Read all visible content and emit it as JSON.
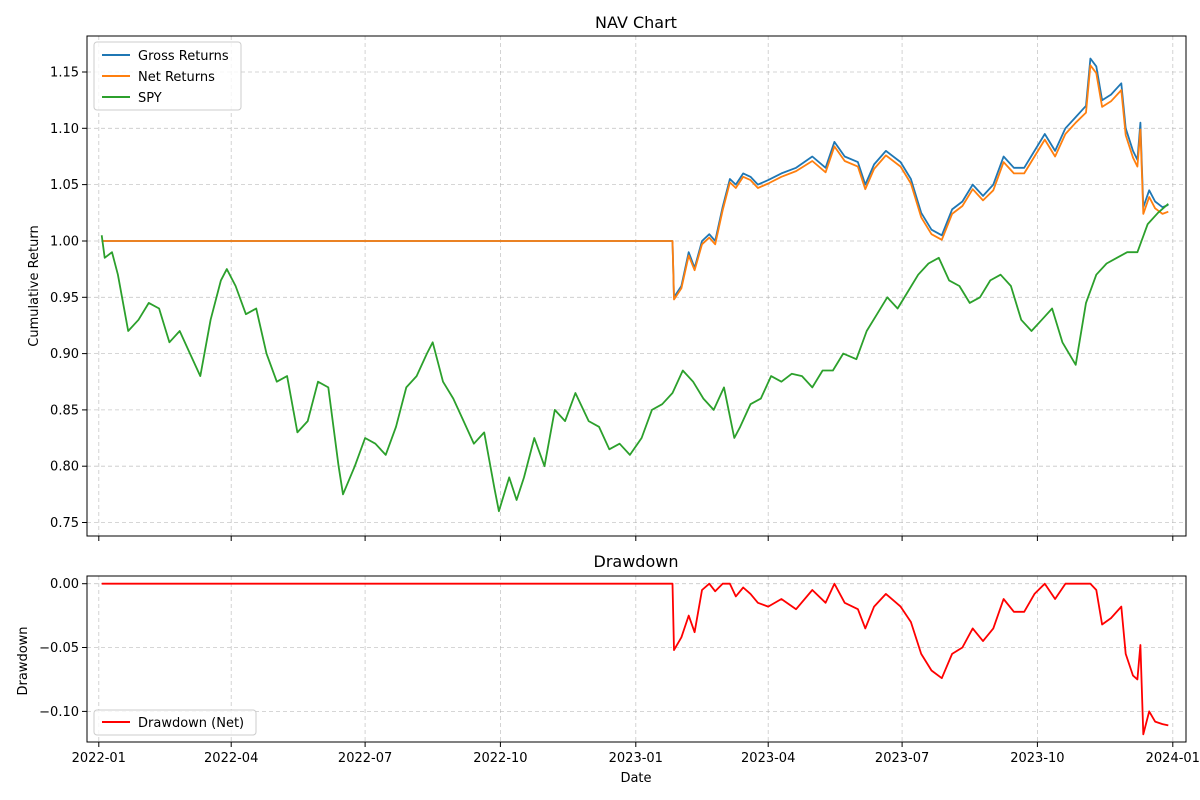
{
  "chart_data": [
    {
      "type": "line",
      "title": "NAV Chart",
      "xlabel": "",
      "ylabel": "Cumulative Return",
      "x_range": [
        "2021-12-24",
        "2024-01-10"
      ],
      "ylim": [
        0.738,
        1.182
      ],
      "xticks": [
        "2022-01",
        "2022-04",
        "2022-07",
        "2022-10",
        "2023-01",
        "2023-04",
        "2023-07",
        "2023-10",
        "2024-01"
      ],
      "xticks_visible": false,
      "yticks": [
        0.75,
        0.8,
        0.85,
        0.9,
        0.95,
        1.0,
        1.05,
        1.1,
        1.15
      ],
      "ytick_labels": [
        "0.75",
        "0.80",
        "0.85",
        "0.90",
        "0.95",
        "1.00",
        "1.05",
        "1.10",
        "1.15"
      ],
      "grid": true,
      "legend": "upper-left",
      "series": [
        {
          "name": "Gross Returns",
          "color": "#1f77b4",
          "x": [
            "2022-01-03",
            "2023-01-26",
            "2023-01-27",
            "2023-02-01",
            "2023-02-06",
            "2023-02-10",
            "2023-02-15",
            "2023-02-20",
            "2023-02-24",
            "2023-03-01",
            "2023-03-06",
            "2023-03-10",
            "2023-03-15",
            "2023-03-20",
            "2023-03-25",
            "2023-04-01",
            "2023-04-10",
            "2023-04-20",
            "2023-05-01",
            "2023-05-10",
            "2023-05-16",
            "2023-05-23",
            "2023-06-01",
            "2023-06-06",
            "2023-06-12",
            "2023-06-20",
            "2023-06-30",
            "2023-07-07",
            "2023-07-14",
            "2023-07-21",
            "2023-07-28",
            "2023-08-04",
            "2023-08-11",
            "2023-08-18",
            "2023-08-25",
            "2023-09-01",
            "2023-09-08",
            "2023-09-15",
            "2023-09-22",
            "2023-09-29",
            "2023-10-06",
            "2023-10-13",
            "2023-10-20",
            "2023-10-27",
            "2023-11-03",
            "2023-11-06",
            "2023-11-10",
            "2023-11-14",
            "2023-11-20",
            "2023-11-27",
            "2023-11-30",
            "2023-12-05",
            "2023-12-08",
            "2023-12-10",
            "2023-12-12",
            "2023-12-16",
            "2023-12-20",
            "2023-12-25",
            "2023-12-29"
          ],
          "values": [
            1.0,
            1.0,
            0.95,
            0.96,
            0.99,
            0.976,
            1.0,
            1.006,
            1.0,
            1.03,
            1.055,
            1.05,
            1.06,
            1.057,
            1.05,
            1.054,
            1.06,
            1.065,
            1.075,
            1.065,
            1.088,
            1.075,
            1.07,
            1.05,
            1.068,
            1.08,
            1.07,
            1.055,
            1.025,
            1.01,
            1.005,
            1.028,
            1.035,
            1.05,
            1.04,
            1.05,
            1.075,
            1.065,
            1.065,
            1.08,
            1.095,
            1.08,
            1.1,
            1.11,
            1.12,
            1.162,
            1.155,
            1.125,
            1.13,
            1.14,
            1.1,
            1.08,
            1.072,
            1.105,
            1.03,
            1.045,
            1.035,
            1.03,
            1.032
          ]
        },
        {
          "name": "Net Returns",
          "color": "#ff7f0e",
          "x": [
            "2022-01-03",
            "2023-01-26",
            "2023-01-27",
            "2023-02-01",
            "2023-02-06",
            "2023-02-10",
            "2023-02-15",
            "2023-02-20",
            "2023-02-24",
            "2023-03-01",
            "2023-03-06",
            "2023-03-10",
            "2023-03-15",
            "2023-03-20",
            "2023-03-25",
            "2023-04-01",
            "2023-04-10",
            "2023-04-20",
            "2023-05-01",
            "2023-05-10",
            "2023-05-16",
            "2023-05-23",
            "2023-06-01",
            "2023-06-06",
            "2023-06-12",
            "2023-06-20",
            "2023-06-30",
            "2023-07-07",
            "2023-07-14",
            "2023-07-21",
            "2023-07-28",
            "2023-08-04",
            "2023-08-11",
            "2023-08-18",
            "2023-08-25",
            "2023-09-01",
            "2023-09-08",
            "2023-09-15",
            "2023-09-22",
            "2023-09-29",
            "2023-10-06",
            "2023-10-13",
            "2023-10-20",
            "2023-10-27",
            "2023-11-03",
            "2023-11-06",
            "2023-11-10",
            "2023-11-14",
            "2023-11-20",
            "2023-11-27",
            "2023-11-30",
            "2023-12-05",
            "2023-12-08",
            "2023-12-10",
            "2023-12-12",
            "2023-12-16",
            "2023-12-20",
            "2023-12-25",
            "2023-12-29"
          ],
          "values": [
            1.0,
            1.0,
            0.948,
            0.958,
            0.987,
            0.974,
            0.997,
            1.003,
            0.997,
            1.027,
            1.052,
            1.047,
            1.057,
            1.054,
            1.047,
            1.051,
            1.057,
            1.062,
            1.071,
            1.061,
            1.084,
            1.071,
            1.066,
            1.046,
            1.064,
            1.076,
            1.066,
            1.051,
            1.021,
            1.006,
            1.001,
            1.024,
            1.031,
            1.046,
            1.036,
            1.045,
            1.07,
            1.06,
            1.06,
            1.075,
            1.09,
            1.075,
            1.095,
            1.105,
            1.114,
            1.156,
            1.149,
            1.119,
            1.124,
            1.134,
            1.094,
            1.074,
            1.066,
            1.099,
            1.024,
            1.039,
            1.029,
            1.024,
            1.026
          ]
        },
        {
          "name": "SPY",
          "color": "#2ca02c",
          "x": [
            "2022-01-03",
            "2022-01-05",
            "2022-01-10",
            "2022-01-14",
            "2022-01-21",
            "2022-01-28",
            "2022-02-04",
            "2022-02-11",
            "2022-02-18",
            "2022-02-25",
            "2022-03-04",
            "2022-03-11",
            "2022-03-18",
            "2022-03-25",
            "2022-03-29",
            "2022-04-04",
            "2022-04-11",
            "2022-04-18",
            "2022-04-25",
            "2022-05-02",
            "2022-05-09",
            "2022-05-16",
            "2022-05-23",
            "2022-05-30",
            "2022-06-06",
            "2022-06-13",
            "2022-06-16",
            "2022-06-24",
            "2022-07-01",
            "2022-07-08",
            "2022-07-15",
            "2022-07-22",
            "2022-07-29",
            "2022-08-05",
            "2022-08-12",
            "2022-08-16",
            "2022-08-23",
            "2022-08-30",
            "2022-09-06",
            "2022-09-13",
            "2022-09-20",
            "2022-09-27",
            "2022-09-30",
            "2022-10-07",
            "2022-10-12",
            "2022-10-17",
            "2022-10-24",
            "2022-10-31",
            "2022-11-07",
            "2022-11-14",
            "2022-11-21",
            "2022-11-30",
            "2022-12-07",
            "2022-12-14",
            "2022-12-21",
            "2022-12-28",
            "2023-01-05",
            "2023-01-12",
            "2023-01-19",
            "2023-01-26",
            "2023-02-02",
            "2023-02-09",
            "2023-02-16",
            "2023-02-23",
            "2023-03-02",
            "2023-03-09",
            "2023-03-13",
            "2023-03-20",
            "2023-03-27",
            "2023-04-03",
            "2023-04-10",
            "2023-04-17",
            "2023-04-24",
            "2023-05-01",
            "2023-05-08",
            "2023-05-15",
            "2023-05-22",
            "2023-05-31",
            "2023-06-07",
            "2023-06-14",
            "2023-06-21",
            "2023-06-28",
            "2023-07-05",
            "2023-07-12",
            "2023-07-19",
            "2023-07-26",
            "2023-08-02",
            "2023-08-09",
            "2023-08-16",
            "2023-08-23",
            "2023-08-30",
            "2023-09-06",
            "2023-09-13",
            "2023-09-20",
            "2023-09-27",
            "2023-10-04",
            "2023-10-11",
            "2023-10-18",
            "2023-10-27",
            "2023-11-03",
            "2023-11-10",
            "2023-11-17",
            "2023-11-24",
            "2023-12-01",
            "2023-12-08",
            "2023-12-15",
            "2023-12-22",
            "2023-12-29"
          ],
          "values": [
            1.005,
            0.985,
            0.99,
            0.97,
            0.92,
            0.93,
            0.945,
            0.94,
            0.91,
            0.92,
            0.9,
            0.88,
            0.93,
            0.965,
            0.975,
            0.96,
            0.935,
            0.94,
            0.9,
            0.875,
            0.88,
            0.83,
            0.84,
            0.875,
            0.87,
            0.8,
            0.775,
            0.8,
            0.825,
            0.82,
            0.81,
            0.835,
            0.87,
            0.88,
            0.9,
            0.91,
            0.875,
            0.86,
            0.84,
            0.82,
            0.83,
            0.78,
            0.76,
            0.79,
            0.77,
            0.79,
            0.825,
            0.8,
            0.85,
            0.84,
            0.865,
            0.84,
            0.835,
            0.815,
            0.82,
            0.81,
            0.825,
            0.85,
            0.855,
            0.865,
            0.885,
            0.875,
            0.86,
            0.85,
            0.87,
            0.825,
            0.835,
            0.855,
            0.86,
            0.88,
            0.875,
            0.882,
            0.88,
            0.87,
            0.885,
            0.885,
            0.9,
            0.895,
            0.92,
            0.935,
            0.95,
            0.94,
            0.955,
            0.97,
            0.98,
            0.985,
            0.965,
            0.96,
            0.945,
            0.95,
            0.965,
            0.97,
            0.96,
            0.93,
            0.92,
            0.93,
            0.94,
            0.91,
            0.89,
            0.945,
            0.97,
            0.98,
            0.985,
            0.99,
            0.99,
            1.015,
            1.025,
            1.033
          ]
        }
      ]
    },
    {
      "type": "line",
      "title": "Drawdown",
      "xlabel": "Date",
      "ylabel": "Drawdown",
      "x_range": [
        "2021-12-24",
        "2024-01-10"
      ],
      "ylim": [
        -0.124,
        0.006
      ],
      "xticks": [
        "2022-01",
        "2022-04",
        "2022-07",
        "2022-10",
        "2023-01",
        "2023-04",
        "2023-07",
        "2023-10",
        "2024-01"
      ],
      "xticks_visible": true,
      "yticks": [
        -0.1,
        -0.05,
        0.0
      ],
      "ytick_labels": [
        "−0.10",
        "−0.05",
        "0.00"
      ],
      "grid": true,
      "legend": "lower-left",
      "series": [
        {
          "name": "Drawdown (Net)",
          "color": "#ff0000",
          "x": [
            "2022-01-03",
            "2023-01-26",
            "2023-01-27",
            "2023-02-01",
            "2023-02-06",
            "2023-02-10",
            "2023-02-15",
            "2023-02-20",
            "2023-02-24",
            "2023-03-01",
            "2023-03-06",
            "2023-03-10",
            "2023-03-15",
            "2023-03-20",
            "2023-03-25",
            "2023-04-01",
            "2023-04-10",
            "2023-04-20",
            "2023-05-01",
            "2023-05-10",
            "2023-05-16",
            "2023-05-23",
            "2023-06-01",
            "2023-06-06",
            "2023-06-12",
            "2023-06-20",
            "2023-06-30",
            "2023-07-07",
            "2023-07-14",
            "2023-07-21",
            "2023-07-28",
            "2023-08-04",
            "2023-08-11",
            "2023-08-18",
            "2023-08-25",
            "2023-09-01",
            "2023-09-08",
            "2023-09-15",
            "2023-09-22",
            "2023-09-29",
            "2023-10-06",
            "2023-10-13",
            "2023-10-20",
            "2023-10-27",
            "2023-11-03",
            "2023-11-06",
            "2023-11-10",
            "2023-11-14",
            "2023-11-20",
            "2023-11-27",
            "2023-11-30",
            "2023-12-05",
            "2023-12-08",
            "2023-12-10",
            "2023-12-12",
            "2023-12-16",
            "2023-12-20",
            "2023-12-25",
            "2023-12-29"
          ],
          "values": [
            0.0,
            0.0,
            -0.052,
            -0.042,
            -0.025,
            -0.038,
            -0.005,
            0.0,
            -0.006,
            0.0,
            0.0,
            -0.01,
            -0.003,
            -0.008,
            -0.015,
            -0.018,
            -0.012,
            -0.02,
            -0.005,
            -0.015,
            0.0,
            -0.015,
            -0.02,
            -0.035,
            -0.018,
            -0.008,
            -0.018,
            -0.03,
            -0.055,
            -0.068,
            -0.074,
            -0.055,
            -0.05,
            -0.035,
            -0.045,
            -0.035,
            -0.012,
            -0.022,
            -0.022,
            -0.008,
            0.0,
            -0.012,
            0.0,
            0.0,
            0.0,
            0.0,
            -0.005,
            -0.032,
            -0.027,
            -0.018,
            -0.055,
            -0.072,
            -0.075,
            -0.048,
            -0.118,
            -0.1,
            -0.108,
            -0.11,
            -0.111
          ]
        }
      ]
    }
  ]
}
